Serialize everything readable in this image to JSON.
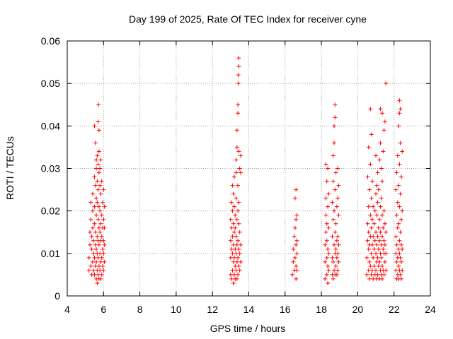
{
  "chart_data": {
    "type": "scatter",
    "title": "Day 199 of 2025, Rate Of TEC Index for receiver cyne",
    "xlabel": "GPS time / hours",
    "ylabel": "ROTI / TECUs",
    "xlim": [
      4,
      24
    ],
    "ylim": [
      0,
      0.06
    ],
    "x_ticks": [
      "4",
      "6",
      "8",
      "10",
      "12",
      "14",
      "16",
      "18",
      "20",
      "22",
      "24"
    ],
    "y_ticks": [
      "0",
      "0.01",
      "0.02",
      "0.03",
      "0.04",
      "0.05",
      "0.06"
    ],
    "grid": true,
    "marker": "+",
    "color": "#ff0000",
    "points": [
      [
        5.2,
        0.006
      ],
      [
        5.2,
        0.009
      ],
      [
        5.25,
        0.012
      ],
      [
        5.25,
        0.015
      ],
      [
        5.3,
        0.007
      ],
      [
        5.3,
        0.018
      ],
      [
        5.3,
        0.022
      ],
      [
        5.35,
        0.005
      ],
      [
        5.35,
        0.011
      ],
      [
        5.35,
        0.014
      ],
      [
        5.4,
        0.008
      ],
      [
        5.4,
        0.016
      ],
      [
        5.4,
        0.02
      ],
      [
        5.4,
        0.024
      ],
      [
        5.45,
        0.006
      ],
      [
        5.45,
        0.01
      ],
      [
        5.45,
        0.013
      ],
      [
        5.5,
        0.005
      ],
      [
        5.5,
        0.009
      ],
      [
        5.5,
        0.017
      ],
      [
        5.5,
        0.021
      ],
      [
        5.5,
        0.028
      ],
      [
        5.5,
        0.04
      ],
      [
        5.55,
        0.007
      ],
      [
        5.55,
        0.012
      ],
      [
        5.55,
        0.015
      ],
      [
        5.55,
        0.026
      ],
      [
        5.55,
        0.036
      ],
      [
        5.6,
        0.004
      ],
      [
        5.6,
        0.008
      ],
      [
        5.6,
        0.011
      ],
      [
        5.6,
        0.019
      ],
      [
        5.6,
        0.023
      ],
      [
        5.6,
        0.03
      ],
      [
        5.6,
        0.032
      ],
      [
        5.65,
        0.003
      ],
      [
        5.65,
        0.006
      ],
      [
        5.65,
        0.01
      ],
      [
        5.65,
        0.014
      ],
      [
        5.65,
        0.022
      ],
      [
        5.65,
        0.027
      ],
      [
        5.65,
        0.033
      ],
      [
        5.7,
        0.005
      ],
      [
        5.7,
        0.009
      ],
      [
        5.7,
        0.013
      ],
      [
        5.7,
        0.018
      ],
      [
        5.7,
        0.025
      ],
      [
        5.7,
        0.031
      ],
      [
        5.7,
        0.041
      ],
      [
        5.72,
        0.045
      ],
      [
        5.75,
        0.004
      ],
      [
        5.75,
        0.007
      ],
      [
        5.75,
        0.012
      ],
      [
        5.75,
        0.016
      ],
      [
        5.75,
        0.021
      ],
      [
        5.75,
        0.029
      ],
      [
        5.75,
        0.034
      ],
      [
        5.75,
        0.039
      ],
      [
        5.8,
        0.006
      ],
      [
        5.8,
        0.01
      ],
      [
        5.8,
        0.015
      ],
      [
        5.8,
        0.02
      ],
      [
        5.8,
        0.026
      ],
      [
        5.8,
        0.03
      ],
      [
        5.85,
        0.004
      ],
      [
        5.85,
        0.008
      ],
      [
        5.85,
        0.013
      ],
      [
        5.85,
        0.017
      ],
      [
        5.85,
        0.024
      ],
      [
        5.85,
        0.032
      ],
      [
        5.9,
        0.005
      ],
      [
        5.9,
        0.009
      ],
      [
        5.9,
        0.014
      ],
      [
        5.9,
        0.019
      ],
      [
        5.9,
        0.027
      ],
      [
        5.95,
        0.007
      ],
      [
        5.95,
        0.011
      ],
      [
        5.95,
        0.016
      ],
      [
        5.95,
        0.022
      ],
      [
        6.0,
        0.006
      ],
      [
        6.0,
        0.01
      ],
      [
        6.0,
        0.013
      ],
      [
        6.0,
        0.018
      ],
      [
        6.0,
        0.025
      ],
      [
        6.05,
        0.008
      ],
      [
        6.05,
        0.012
      ],
      [
        6.05,
        0.016
      ],
      [
        6.05,
        0.021
      ],
      [
        13.0,
        0.005
      ],
      [
        13.0,
        0.009
      ],
      [
        13.0,
        0.013
      ],
      [
        13.0,
        0.018
      ],
      [
        13.05,
        0.004
      ],
      [
        13.05,
        0.011
      ],
      [
        13.05,
        0.016
      ],
      [
        13.05,
        0.022
      ],
      [
        13.1,
        0.006
      ],
      [
        13.1,
        0.01
      ],
      [
        13.1,
        0.014
      ],
      [
        13.1,
        0.02
      ],
      [
        13.1,
        0.026
      ],
      [
        13.15,
        0.003
      ],
      [
        13.15,
        0.008
      ],
      [
        13.15,
        0.012
      ],
      [
        13.15,
        0.017
      ],
      [
        13.15,
        0.024
      ],
      [
        13.2,
        0.005
      ],
      [
        13.2,
        0.009
      ],
      [
        13.2,
        0.015
      ],
      [
        13.2,
        0.021
      ],
      [
        13.2,
        0.028
      ],
      [
        13.25,
        0.004
      ],
      [
        13.25,
        0.007
      ],
      [
        13.25,
        0.011
      ],
      [
        13.25,
        0.016
      ],
      [
        13.25,
        0.019
      ],
      [
        13.3,
        0.006
      ],
      [
        13.3,
        0.01
      ],
      [
        13.3,
        0.014
      ],
      [
        13.3,
        0.023
      ],
      [
        13.3,
        0.029
      ],
      [
        13.3,
        0.032
      ],
      [
        13.35,
        0.004
      ],
      [
        13.35,
        0.008
      ],
      [
        13.35,
        0.012
      ],
      [
        13.35,
        0.018
      ],
      [
        13.35,
        0.035
      ],
      [
        13.35,
        0.039
      ],
      [
        13.4,
        0.005
      ],
      [
        13.4,
        0.009
      ],
      [
        13.4,
        0.013
      ],
      [
        13.4,
        0.02
      ],
      [
        13.4,
        0.026
      ],
      [
        13.4,
        0.043
      ],
      [
        13.4,
        0.045
      ],
      [
        13.42,
        0.05
      ],
      [
        13.42,
        0.052
      ],
      [
        13.45,
        0.056
      ],
      [
        13.45,
        0.054
      ],
      [
        13.45,
        0.007
      ],
      [
        13.45,
        0.011
      ],
      [
        13.45,
        0.017
      ],
      [
        13.45,
        0.022
      ],
      [
        13.45,
        0.034
      ],
      [
        13.5,
        0.006
      ],
      [
        13.5,
        0.01
      ],
      [
        13.5,
        0.015
      ],
      [
        13.5,
        0.03
      ],
      [
        13.55,
        0.008
      ],
      [
        13.55,
        0.012
      ],
      [
        13.55,
        0.029
      ],
      [
        13.55,
        0.033
      ],
      [
        16.4,
        0.005
      ],
      [
        16.45,
        0.008
      ],
      [
        16.45,
        0.011
      ],
      [
        16.5,
        0.014
      ],
      [
        16.5,
        0.006
      ],
      [
        16.55,
        0.009
      ],
      [
        16.55,
        0.016
      ],
      [
        16.55,
        0.023
      ],
      [
        16.6,
        0.004
      ],
      [
        16.6,
        0.007
      ],
      [
        16.6,
        0.012
      ],
      [
        16.6,
        0.018
      ],
      [
        16.6,
        0.025
      ],
      [
        16.65,
        0.006
      ],
      [
        16.65,
        0.01
      ],
      [
        16.65,
        0.013
      ],
      [
        16.65,
        0.019
      ],
      [
        18.2,
        0.004
      ],
      [
        18.2,
        0.008
      ],
      [
        18.2,
        0.012
      ],
      [
        18.25,
        0.015
      ],
      [
        18.25,
        0.019
      ],
      [
        18.25,
        0.023
      ],
      [
        18.25,
        0.031
      ],
      [
        18.3,
        0.005
      ],
      [
        18.3,
        0.009
      ],
      [
        18.3,
        0.013
      ],
      [
        18.3,
        0.017
      ],
      [
        18.3,
        0.027
      ],
      [
        18.35,
        0.003
      ],
      [
        18.35,
        0.007
      ],
      [
        18.35,
        0.011
      ],
      [
        18.35,
        0.021
      ],
      [
        18.35,
        0.03
      ],
      [
        18.4,
        0.006
      ],
      [
        18.4,
        0.01
      ],
      [
        18.4,
        0.016
      ],
      [
        18.4,
        0.024
      ],
      [
        18.6,
        0.005
      ],
      [
        18.6,
        0.009
      ],
      [
        18.6,
        0.014
      ],
      [
        18.6,
        0.022
      ],
      [
        18.65,
        0.004
      ],
      [
        18.65,
        0.008
      ],
      [
        18.65,
        0.018
      ],
      [
        18.65,
        0.027
      ],
      [
        18.65,
        0.033
      ],
      [
        18.7,
        0.006
      ],
      [
        18.7,
        0.012
      ],
      [
        18.7,
        0.02
      ],
      [
        18.7,
        0.036
      ],
      [
        18.7,
        0.04
      ],
      [
        18.75,
        0.005
      ],
      [
        18.75,
        0.01
      ],
      [
        18.75,
        0.015
      ],
      [
        18.75,
        0.025
      ],
      [
        18.75,
        0.045
      ],
      [
        18.75,
        0.042
      ],
      [
        18.8,
        0.007
      ],
      [
        18.8,
        0.011
      ],
      [
        18.8,
        0.017
      ],
      [
        18.8,
        0.029
      ],
      [
        18.85,
        0.005
      ],
      [
        18.85,
        0.009
      ],
      [
        18.85,
        0.013
      ],
      [
        18.85,
        0.021
      ],
      [
        18.9,
        0.006
      ],
      [
        18.9,
        0.01
      ],
      [
        18.9,
        0.014
      ],
      [
        18.9,
        0.023
      ],
      [
        18.9,
        0.03
      ],
      [
        18.95,
        0.008
      ],
      [
        18.95,
        0.012
      ],
      [
        18.95,
        0.019
      ],
      [
        18.95,
        0.026
      ],
      [
        20.5,
        0.005
      ],
      [
        20.5,
        0.009
      ],
      [
        20.55,
        0.013
      ],
      [
        20.55,
        0.017
      ],
      [
        20.55,
        0.028
      ],
      [
        20.6,
        0.006
      ],
      [
        20.6,
        0.011
      ],
      [
        20.6,
        0.015
      ],
      [
        20.6,
        0.021
      ],
      [
        20.6,
        0.035
      ],
      [
        20.65,
        0.004
      ],
      [
        20.65,
        0.008
      ],
      [
        20.65,
        0.012
      ],
      [
        20.65,
        0.025
      ],
      [
        20.7,
        0.007
      ],
      [
        20.7,
        0.014
      ],
      [
        20.7,
        0.019
      ],
      [
        20.7,
        0.031
      ],
      [
        20.7,
        0.044
      ],
      [
        20.75,
        0.005
      ],
      [
        20.75,
        0.01
      ],
      [
        20.75,
        0.016
      ],
      [
        20.75,
        0.023
      ],
      [
        20.75,
        0.038
      ],
      [
        20.8,
        0.006
      ],
      [
        20.8,
        0.012
      ],
      [
        20.8,
        0.018
      ],
      [
        20.8,
        0.027
      ],
      [
        20.85,
        0.004
      ],
      [
        20.85,
        0.009
      ],
      [
        20.85,
        0.014
      ],
      [
        20.85,
        0.021
      ],
      [
        20.9,
        0.007
      ],
      [
        20.9,
        0.011
      ],
      [
        20.9,
        0.017
      ],
      [
        20.95,
        0.005
      ],
      [
        20.95,
        0.013
      ],
      [
        20.95,
        0.02
      ],
      [
        21.0,
        0.006
      ],
      [
        21.0,
        0.01
      ],
      [
        21.0,
        0.015
      ],
      [
        21.0,
        0.024
      ],
      [
        21.0,
        0.033
      ],
      [
        21.05,
        0.004
      ],
      [
        21.05,
        0.008
      ],
      [
        21.05,
        0.012
      ],
      [
        21.05,
        0.019
      ],
      [
        21.05,
        0.026
      ],
      [
        21.1,
        0.005
      ],
      [
        21.1,
        0.009
      ],
      [
        21.1,
        0.014
      ],
      [
        21.1,
        0.022
      ],
      [
        21.1,
        0.029
      ],
      [
        21.15,
        0.007
      ],
      [
        21.15,
        0.011
      ],
      [
        21.15,
        0.016
      ],
      [
        21.15,
        0.025
      ],
      [
        21.2,
        0.004
      ],
      [
        21.2,
        0.008
      ],
      [
        21.2,
        0.013
      ],
      [
        21.2,
        0.018
      ],
      [
        21.2,
        0.032
      ],
      [
        21.25,
        0.006
      ],
      [
        21.25,
        0.01
      ],
      [
        21.25,
        0.015
      ],
      [
        21.25,
        0.021
      ],
      [
        21.25,
        0.036
      ],
      [
        21.25,
        0.044
      ],
      [
        21.3,
        0.005
      ],
      [
        21.3,
        0.009
      ],
      [
        21.3,
        0.012
      ],
      [
        21.3,
        0.023
      ],
      [
        21.3,
        0.03
      ],
      [
        21.35,
        0.004
      ],
      [
        21.35,
        0.007
      ],
      [
        21.35,
        0.014
      ],
      [
        21.35,
        0.019
      ],
      [
        21.35,
        0.027
      ],
      [
        21.35,
        0.043
      ],
      [
        21.4,
        0.006
      ],
      [
        21.4,
        0.011
      ],
      [
        21.4,
        0.016
      ],
      [
        21.4,
        0.034
      ],
      [
        21.45,
        0.005
      ],
      [
        21.45,
        0.01
      ],
      [
        21.45,
        0.013
      ],
      [
        21.45,
        0.02
      ],
      [
        21.45,
        0.039
      ],
      [
        21.5,
        0.008
      ],
      [
        21.5,
        0.012
      ],
      [
        21.5,
        0.017
      ],
      [
        21.5,
        0.041
      ],
      [
        21.55,
        0.006
      ],
      [
        21.55,
        0.01
      ],
      [
        21.55,
        0.015
      ],
      [
        21.55,
        0.05
      ],
      [
        22.1,
        0.006
      ],
      [
        22.1,
        0.01
      ],
      [
        22.1,
        0.014
      ],
      [
        22.1,
        0.025
      ],
      [
        22.15,
        0.004
      ],
      [
        22.15,
        0.008
      ],
      [
        22.15,
        0.012
      ],
      [
        22.15,
        0.019
      ],
      [
        22.15,
        0.029
      ],
      [
        22.2,
        0.005
      ],
      [
        22.2,
        0.009
      ],
      [
        22.2,
        0.016
      ],
      [
        22.2,
        0.022
      ],
      [
        22.2,
        0.033
      ],
      [
        22.25,
        0.004
      ],
      [
        22.25,
        0.007
      ],
      [
        22.25,
        0.011
      ],
      [
        22.25,
        0.017
      ],
      [
        22.25,
        0.026
      ],
      [
        22.25,
        0.04
      ],
      [
        22.3,
        0.006
      ],
      [
        22.3,
        0.01
      ],
      [
        22.3,
        0.013
      ],
      [
        22.3,
        0.021
      ],
      [
        22.3,
        0.031
      ],
      [
        22.3,
        0.043
      ],
      [
        22.3,
        0.046
      ],
      [
        22.35,
        0.005
      ],
      [
        22.35,
        0.009
      ],
      [
        22.35,
        0.015
      ],
      [
        22.35,
        0.024
      ],
      [
        22.35,
        0.036
      ],
      [
        22.35,
        0.044
      ],
      [
        22.4,
        0.004
      ],
      [
        22.4,
        0.008
      ],
      [
        22.4,
        0.012
      ],
      [
        22.4,
        0.018
      ],
      [
        22.4,
        0.028
      ],
      [
        22.45,
        0.006
      ],
      [
        22.45,
        0.011
      ],
      [
        22.45,
        0.02
      ],
      [
        22.45,
        0.034
      ]
    ]
  }
}
